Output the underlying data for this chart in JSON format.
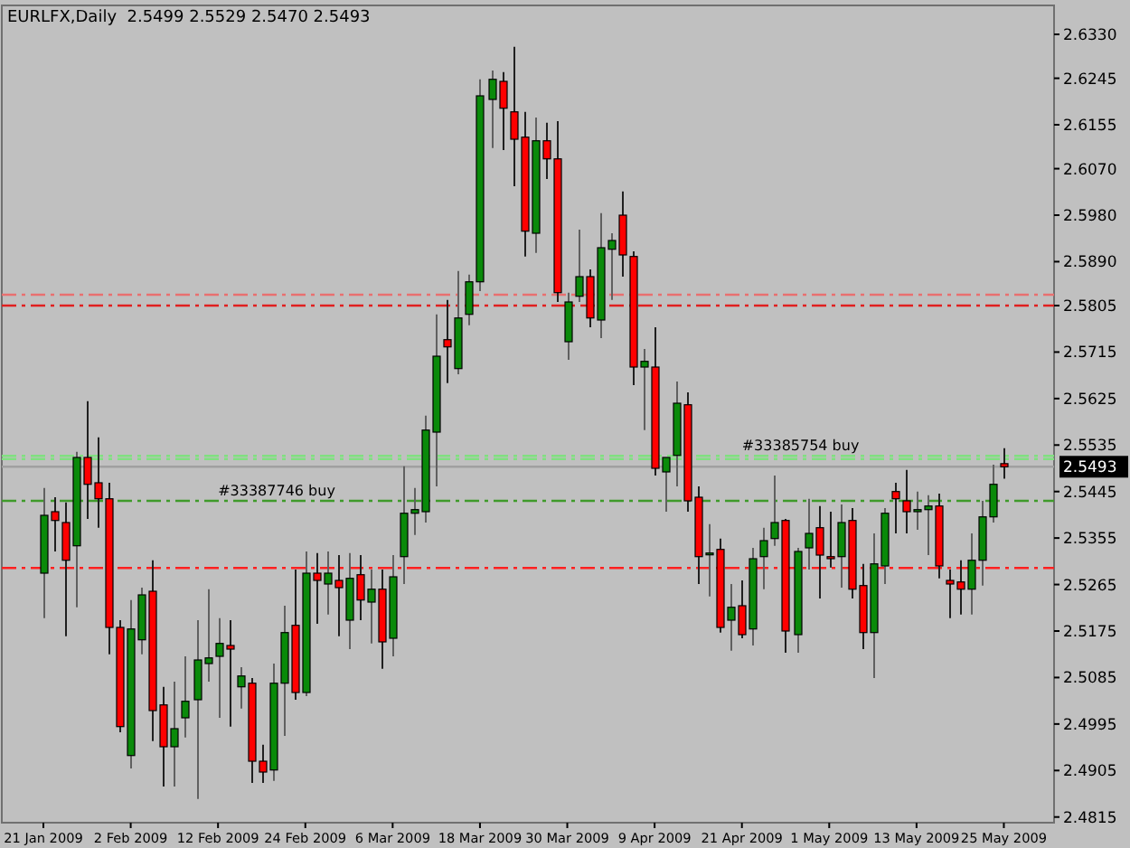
{
  "chart_data": {
    "type": "candlestick",
    "title": "EURLFX,Daily  2.5499 2.5529 2.5470 2.5493",
    "categories": [
      "21 Jan 2009",
      null,
      null,
      null,
      null,
      null,
      null,
      null,
      "2 Feb 2009",
      null,
      null,
      null,
      null,
      null,
      null,
      null,
      "12 Feb 2009",
      null,
      null,
      null,
      null,
      null,
      null,
      null,
      "24 Feb 2009",
      null,
      null,
      null,
      null,
      null,
      null,
      null,
      "6 Mar 2009",
      null,
      null,
      null,
      null,
      null,
      null,
      null,
      "18 Mar 2009",
      null,
      null,
      null,
      null,
      null,
      null,
      null,
      "30 Mar 2009",
      null,
      null,
      null,
      null,
      null,
      null,
      null,
      "9 Apr 2009",
      null,
      null,
      null,
      null,
      null,
      null,
      null,
      "21 Apr 2009",
      null,
      null,
      null,
      null,
      null,
      null,
      null,
      "1 May 2009",
      null,
      null,
      null,
      null,
      null,
      null,
      null,
      "13 May 2009",
      null,
      null,
      null,
      null,
      null,
      null,
      null,
      "25 May 2009"
    ],
    "ohlc": [
      [
        2.5287,
        2.5452,
        2.52,
        2.5399
      ],
      [
        2.5406,
        2.5434,
        2.5329,
        2.5389
      ],
      [
        2.5385,
        2.5424,
        2.5165,
        2.5312
      ],
      [
        2.534,
        2.5522,
        2.5221,
        2.5511
      ],
      [
        2.5511,
        2.562,
        2.5392,
        2.5459
      ],
      [
        2.5462,
        2.555,
        2.5375,
        2.5431
      ],
      [
        2.5431,
        2.5462,
        2.513,
        2.5182
      ],
      [
        2.5182,
        2.5196,
        2.4979,
        2.499
      ],
      [
        2.4934,
        2.5235,
        2.4909,
        2.5179
      ],
      [
        2.5158,
        2.5259,
        2.513,
        2.5245
      ],
      [
        2.5252,
        2.5312,
        2.4962,
        2.5021
      ],
      [
        2.5032,
        2.5067,
        2.4874,
        2.4951
      ],
      [
        2.4951,
        2.5077,
        2.4874,
        2.4986
      ],
      [
        2.5007,
        2.5126,
        2.4969,
        2.5039
      ],
      [
        2.5042,
        2.5196,
        2.485,
        2.5119
      ],
      [
        2.5112,
        2.5256,
        2.5077,
        2.5123
      ],
      [
        2.5126,
        2.52,
        2.5007,
        2.5151
      ],
      [
        2.5147,
        2.5196,
        2.499,
        2.514
      ],
      [
        2.5067,
        2.5105,
        2.5025,
        2.5088
      ],
      [
        2.5074,
        2.5084,
        2.4881,
        2.4923
      ],
      [
        2.4923,
        2.4955,
        2.4881,
        2.4902
      ],
      [
        2.4906,
        2.5112,
        2.4885,
        2.5074
      ],
      [
        2.5074,
        2.5224,
        2.4972,
        2.5172
      ],
      [
        2.5186,
        2.5294,
        2.5042,
        2.5056
      ],
      [
        2.5056,
        2.5329,
        2.5049,
        2.5287
      ],
      [
        2.5287,
        2.5326,
        2.5189,
        2.5273
      ],
      [
        2.5266,
        2.5329,
        2.5207,
        2.5287
      ],
      [
        2.5273,
        2.5322,
        2.5165,
        2.5259
      ],
      [
        2.5196,
        2.5326,
        2.514,
        2.5277
      ],
      [
        2.5284,
        2.5322,
        2.5196,
        2.5235
      ],
      [
        2.5231,
        2.5294,
        2.5151,
        2.5256
      ],
      [
        2.5256,
        2.5294,
        2.5102,
        2.5154
      ],
      [
        2.5161,
        2.5322,
        2.5126,
        2.528
      ],
      [
        2.5319,
        2.5494,
        2.5266,
        2.5403
      ],
      [
        2.5403,
        2.5452,
        2.5361,
        2.541
      ],
      [
        2.5406,
        2.5592,
        2.5385,
        2.5564
      ],
      [
        2.556,
        2.5788,
        2.5455,
        2.5707
      ],
      [
        2.5739,
        2.5816,
        2.5655,
        2.5725
      ],
      [
        2.5683,
        2.5872,
        2.5672,
        2.5781
      ],
      [
        2.5788,
        2.5865,
        2.5767,
        2.5851
      ],
      [
        2.5851,
        2.6243,
        2.5833,
        2.6211
      ],
      [
        2.6204,
        2.626,
        2.611,
        2.6243
      ],
      [
        2.6239,
        2.6257,
        2.6106,
        2.6187
      ],
      [
        2.618,
        2.6306,
        2.6036,
        2.6127
      ],
      [
        2.6131,
        2.618,
        2.59,
        2.5949
      ],
      [
        2.5945,
        2.6169,
        2.5907,
        2.6124
      ],
      [
        2.6124,
        2.6159,
        2.605,
        2.6089
      ],
      [
        2.6089,
        2.6162,
        2.5812,
        2.583
      ],
      [
        2.5735,
        2.583,
        2.57,
        2.5812
      ],
      [
        2.5823,
        2.5952,
        2.5812,
        2.5861
      ],
      [
        2.5861,
        2.5875,
        2.5763,
        2.5781
      ],
      [
        2.5777,
        2.5984,
        2.5742,
        2.5917
      ],
      [
        2.5914,
        2.5945,
        2.5816,
        2.5931
      ],
      [
        2.598,
        2.6026,
        2.5861,
        2.5903
      ],
      [
        2.59,
        2.591,
        2.5651,
        2.5686
      ],
      [
        2.5686,
        2.5721,
        2.5564,
        2.5697
      ],
      [
        2.5686,
        2.5763,
        2.5476,
        2.549
      ],
      [
        2.5483,
        2.5511,
        2.5406,
        2.5511
      ],
      [
        2.5515,
        2.5658,
        2.5455,
        2.5616
      ],
      [
        2.5613,
        2.5637,
        2.5406,
        2.5427
      ],
      [
        2.5434,
        2.5455,
        2.5266,
        2.5319
      ],
      [
        2.5326,
        2.5382,
        2.5242,
        2.5326
      ],
      [
        2.5333,
        2.5354,
        2.5172,
        2.5182
      ],
      [
        2.5196,
        2.5266,
        2.5137,
        2.5221
      ],
      [
        2.5224,
        2.5273,
        2.5161,
        2.5168
      ],
      [
        2.5179,
        2.5336,
        2.5147,
        2.5315
      ],
      [
        2.5319,
        2.5375,
        2.5256,
        2.535
      ],
      [
        2.5354,
        2.5476,
        2.534,
        2.5385
      ],
      [
        2.5389,
        2.5392,
        2.5133,
        2.5175
      ],
      [
        2.5168,
        2.5336,
        2.5133,
        2.5329
      ],
      [
        2.5336,
        2.5431,
        2.5294,
        2.5364
      ],
      [
        2.5375,
        2.5417,
        2.5238,
        2.5322
      ],
      [
        2.5319,
        2.5406,
        2.5298,
        2.5315
      ],
      [
        2.5319,
        2.542,
        2.5259,
        2.5385
      ],
      [
        2.5389,
        2.5413,
        2.5238,
        2.5256
      ],
      [
        2.5263,
        2.5305,
        2.514,
        2.5172
      ],
      [
        2.5172,
        2.5364,
        2.5084,
        2.5305
      ],
      [
        2.5301,
        2.5413,
        2.5266,
        2.5403
      ],
      [
        2.5445,
        2.5462,
        2.5364,
        2.5431
      ],
      [
        2.5427,
        2.5487,
        2.5364,
        2.5406
      ],
      [
        2.5406,
        2.5445,
        2.5371,
        2.541
      ],
      [
        2.541,
        2.5438,
        2.5322,
        2.5417
      ],
      [
        2.5417,
        2.5441,
        2.5277,
        2.5301
      ],
      [
        2.5273,
        2.5294,
        2.52,
        2.5266
      ],
      [
        2.527,
        2.5312,
        2.5207,
        2.5256
      ],
      [
        2.5256,
        2.5364,
        2.5207,
        2.5312
      ],
      [
        2.5312,
        2.5427,
        2.5263,
        2.5396
      ],
      [
        2.5396,
        2.5497,
        2.5385,
        2.5459
      ],
      [
        2.5499,
        2.5529,
        2.547,
        2.5493
      ]
    ],
    "ylim": [
      2.4804,
      2.6386
    ],
    "yticks": [
      {
        "value": 2.633,
        "label": "2.6330"
      },
      {
        "value": 2.6245,
        "label": "2.6245"
      },
      {
        "value": 2.6155,
        "label": "2.6155"
      },
      {
        "value": 2.607,
        "label": "2.6070"
      },
      {
        "value": 2.598,
        "label": "2.5980"
      },
      {
        "value": 2.589,
        "label": "2.5890"
      },
      {
        "value": 2.5805,
        "label": "2.5805"
      },
      {
        "value": 2.5715,
        "label": "2.5715"
      },
      {
        "value": 2.5625,
        "label": "2.5625"
      },
      {
        "value": 2.5535,
        "label": "2.5535"
      },
      {
        "value": 2.5445,
        "label": "2.5445"
      },
      {
        "value": 2.5355,
        "label": "2.5355"
      },
      {
        "value": 2.5265,
        "label": "2.5265"
      },
      {
        "value": 2.5175,
        "label": "2.5175"
      },
      {
        "value": 2.5085,
        "label": "2.5085"
      },
      {
        "value": 2.4995,
        "label": "2.4995"
      },
      {
        "value": 2.4905,
        "label": "2.4905"
      },
      {
        "value": 2.4815,
        "label": "2.4815"
      }
    ],
    "ref_lines": [
      {
        "axis": "y",
        "value": 2.5826,
        "color": "#e87070",
        "line_style": "dashed"
      },
      {
        "axis": "y",
        "value": 2.5805,
        "color": "#e02020",
        "line_style": "dashed"
      },
      {
        "axis": "y",
        "value": 2.5514,
        "color": "#80e080",
        "line_style": "dashed"
      },
      {
        "axis": "y",
        "value": 2.5508,
        "color": "#80e080",
        "line_style": "dashed"
      },
      {
        "axis": "y",
        "value": 2.5427,
        "color": "#3f9a2a",
        "line_style": "dashed"
      },
      {
        "axis": "y",
        "value": 2.5297,
        "color": "#ff2020",
        "line_style": "dashed"
      },
      {
        "axis": "y",
        "value": 2.5493,
        "label": "2.5493",
        "color": "#a0a0a0",
        "line_style": "solid"
      }
    ],
    "annotations": [
      {
        "text": "#33385754 buy",
        "y": 2.5514
      },
      {
        "text": "#33387746 buy",
        "y": 2.5427
      }
    ]
  }
}
